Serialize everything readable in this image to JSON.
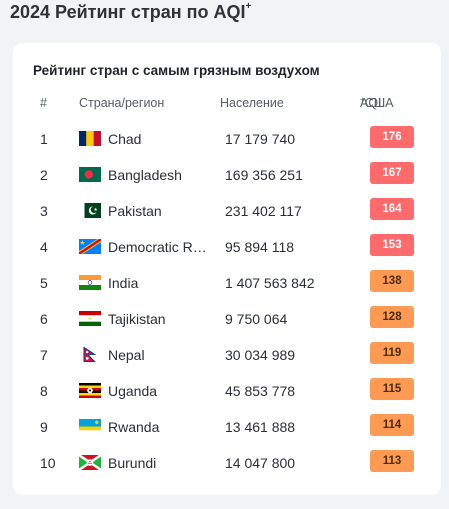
{
  "page": {
    "title": "2024 Рейтинг стран по AQI",
    "title_sup": "+"
  },
  "card": {
    "title": "Рейтинг стран с самым грязным воздухом"
  },
  "columns": {
    "rank": "#",
    "country": "Страна/регион",
    "population": "Население",
    "aqi": "AQI",
    "aqi_sup": "+",
    "aqi_suffix": " США"
  },
  "colors": {
    "aqi_red_bg": "#ff6b6d",
    "aqi_red_text": "#ffffff",
    "aqi_orange_bg": "#ff9a52",
    "aqi_orange_text": "#4a2c12"
  },
  "rows": [
    {
      "rank": "1",
      "flag": "chad-flag",
      "country": "Chad",
      "population": "17 179 740",
      "aqi": "176",
      "level": "red"
    },
    {
      "rank": "2",
      "flag": "bangladesh-flag",
      "country": "Bangladesh",
      "population": "169 356 251",
      "aqi": "167",
      "level": "red"
    },
    {
      "rank": "3",
      "flag": "pakistan-flag",
      "country": "Pakistan",
      "population": "231 402 117",
      "aqi": "164",
      "level": "red"
    },
    {
      "rank": "4",
      "flag": "drc-flag",
      "country": "Democratic Rep...",
      "population": "95 894 118",
      "aqi": "153",
      "level": "red"
    },
    {
      "rank": "5",
      "flag": "india-flag",
      "country": "India",
      "population": "1 407 563 842",
      "aqi": "138",
      "level": "orange"
    },
    {
      "rank": "6",
      "flag": "tajikistan-flag",
      "country": "Tajikistan",
      "population": "9 750 064",
      "aqi": "128",
      "level": "orange"
    },
    {
      "rank": "7",
      "flag": "nepal-flag",
      "country": "Nepal",
      "population": "30 034 989",
      "aqi": "119",
      "level": "orange"
    },
    {
      "rank": "8",
      "flag": "uganda-flag",
      "country": "Uganda",
      "population": "45 853 778",
      "aqi": "115",
      "level": "orange"
    },
    {
      "rank": "9",
      "flag": "rwanda-flag",
      "country": "Rwanda",
      "population": "13 461 888",
      "aqi": "114",
      "level": "orange"
    },
    {
      "rank": "10",
      "flag": "burundi-flag",
      "country": "Burundi",
      "population": "14 047 800",
      "aqi": "113",
      "level": "orange"
    }
  ]
}
